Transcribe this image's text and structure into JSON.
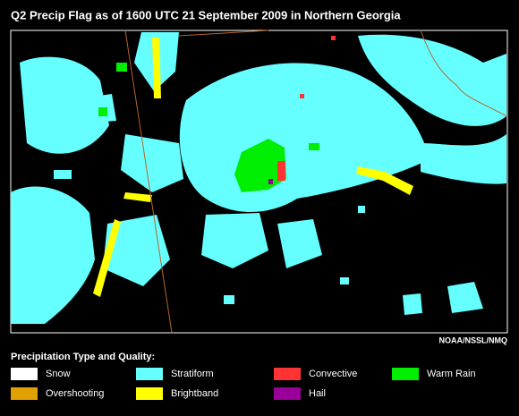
{
  "header": {
    "title": "Q2 Precip Flag as of 1600 UTC 21 September 2009  in Northern Georgia"
  },
  "credit": "NOAA/NSSL/NMQ",
  "legend": {
    "title": "Precipitation Type and Quality:",
    "items": [
      {
        "label": "Snow",
        "color": "#ffffff"
      },
      {
        "label": "Stratiform",
        "color": "#66ffff"
      },
      {
        "label": "Convective",
        "color": "#ff3333"
      },
      {
        "label": "Warm Rain",
        "color": "#00ee00"
      },
      {
        "label": "Overshooting",
        "color": "#e0a000"
      },
      {
        "label": "Brightband",
        "color": "#ffff00"
      },
      {
        "label": "Hail",
        "color": "#990099"
      }
    ]
  }
}
